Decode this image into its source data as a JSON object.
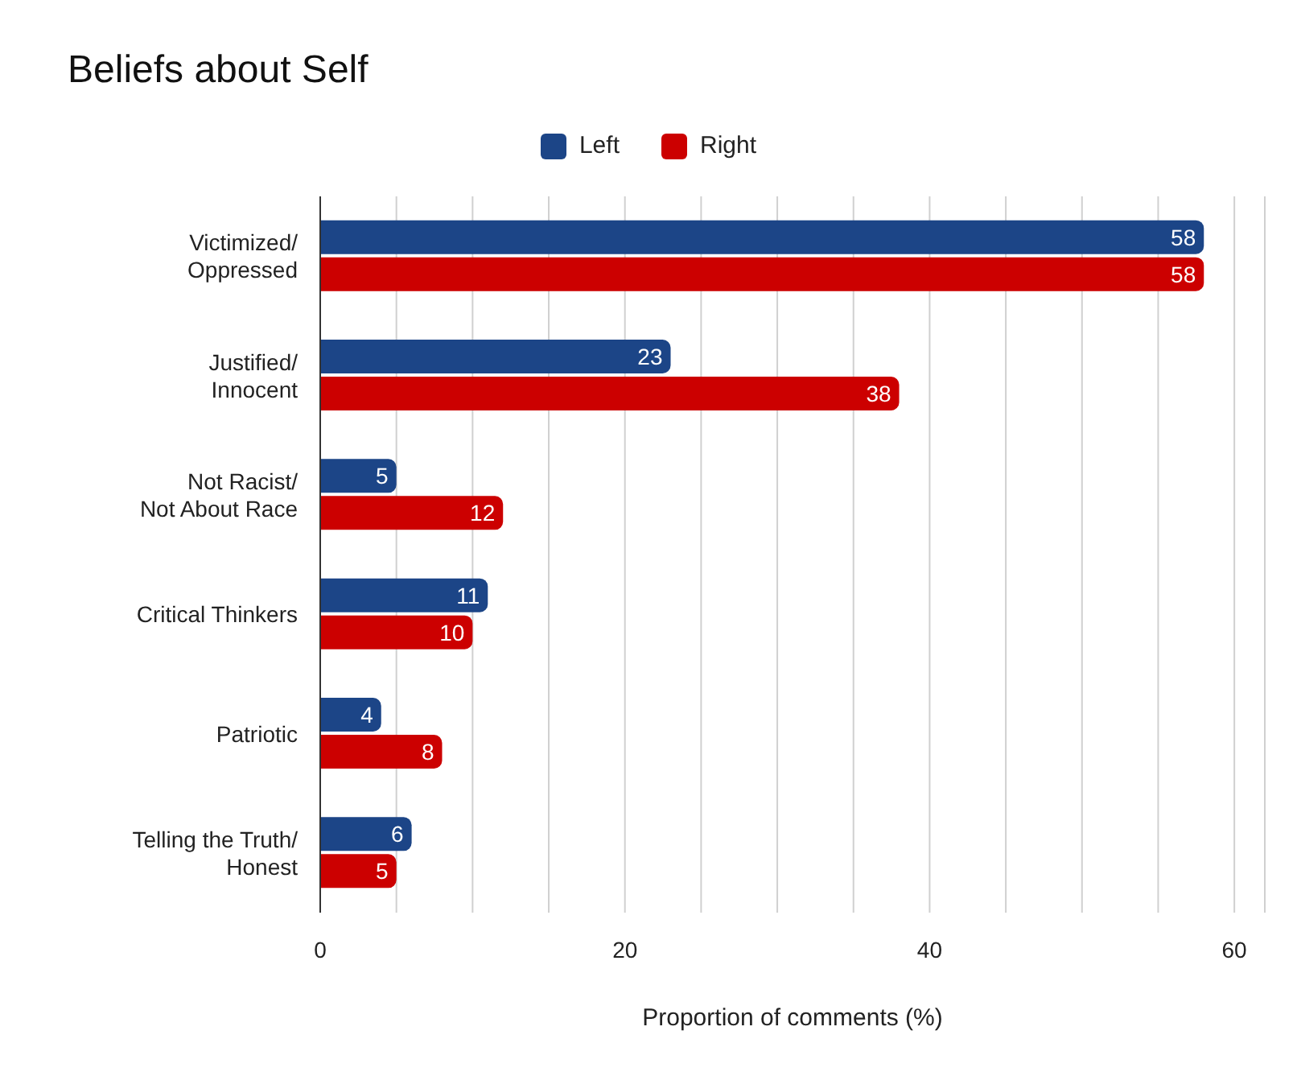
{
  "chart_data": {
    "type": "bar",
    "orientation": "horizontal",
    "title": "Beliefs about Self",
    "xlabel": "Proportion of comments (%)",
    "categories": [
      "Victimized/\nOppressed",
      "Justified/\nInnocent",
      "Not Racist/\nNot About Race",
      "Critical Thinkers",
      "Patriotic",
      "Telling the Truth/\nHonest"
    ],
    "series": [
      {
        "name": "Left",
        "color": "#1c4587",
        "values": [
          58,
          23,
          5,
          11,
          4,
          6
        ]
      },
      {
        "name": "Right",
        "color": "#cc0000",
        "values": [
          58,
          38,
          12,
          10,
          8,
          5
        ]
      }
    ],
    "xlim": [
      0,
      62
    ],
    "xticks": [
      0,
      {
        "value": 5,
        "label": null
      },
      {
        "value": 10,
        "label": null
      },
      {
        "value": 15,
        "label": null
      },
      20,
      {
        "value": 25,
        "label": null
      },
      {
        "value": 30,
        "label": null
      },
      {
        "value": 35,
        "label": null
      },
      40,
      {
        "value": 45,
        "label": null
      },
      {
        "value": 50,
        "label": null
      },
      {
        "value": 55,
        "label": null
      },
      60
    ],
    "grid": "x",
    "legend": "top",
    "data_labels": true
  }
}
